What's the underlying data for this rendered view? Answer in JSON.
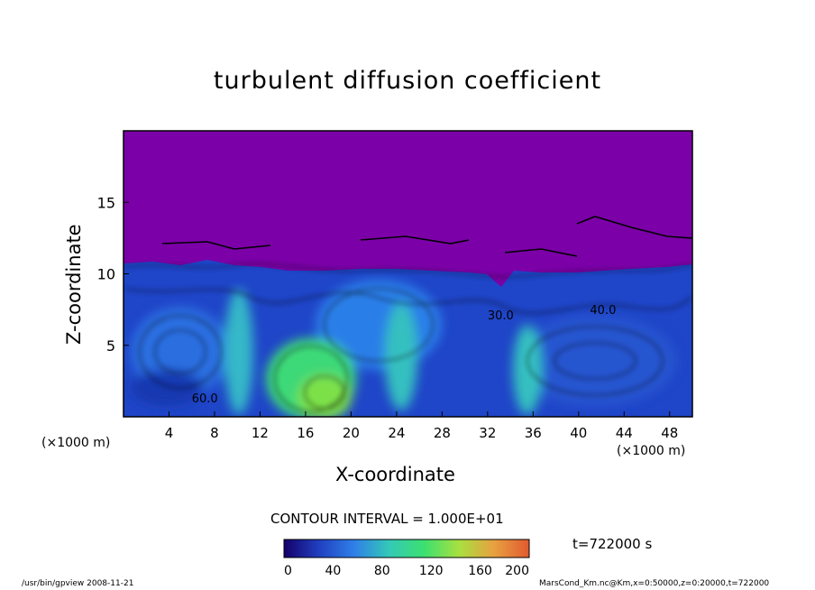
{
  "chart_data": {
    "type": "heatmap",
    "title": "turbulent diffusion coefficient",
    "xlabel": "X-coordinate",
    "ylabel": "Z-coordinate",
    "x_unit": "(×1000 m)",
    "xlim": [
      0,
      50
    ],
    "ylim": [
      0,
      20
    ],
    "x_ticks": [
      4,
      8,
      12,
      16,
      20,
      24,
      28,
      32,
      36,
      40,
      44,
      48
    ],
    "y_ticks": [
      5,
      10,
      15
    ],
    "colorbar": {
      "min": 0,
      "max": 200,
      "ticks": [
        0,
        40,
        80,
        120,
        160,
        200
      ],
      "colors": [
        "#14006a",
        "#2040c0",
        "#2f7fe8",
        "#34c8b8",
        "#3ce070",
        "#a8e040",
        "#e8a040",
        "#e05a30"
      ]
    },
    "background_color": "#7b00a8",
    "contour_interval": "CONTOUR INTERVAL = 1.000E+01",
    "contour_labels": [
      "60.0",
      "40.0",
      "30.0"
    ],
    "time": "t=722000 s"
  },
  "footer": {
    "left": "/usr/bin/gpview   2008-11-21",
    "right": "MarsCond_Km.nc@Km,x=0:50000,z=0:20000,t=722000"
  }
}
